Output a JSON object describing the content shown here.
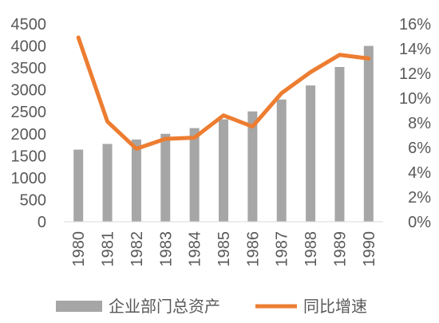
{
  "chart_data": {
    "type": "bar",
    "categories": [
      "1980",
      "1981",
      "1982",
      "1983",
      "1984",
      "1985",
      "1986",
      "1987",
      "1988",
      "1989",
      "1990"
    ],
    "series": [
      {
        "name": "企业部门总资产",
        "type": "bar",
        "axis": "left",
        "color": "#A6A6A6",
        "values": [
          1640,
          1770,
          1870,
          2000,
          2130,
          2330,
          2510,
          2780,
          3100,
          3520,
          4000
        ]
      },
      {
        "name": "同比增速",
        "type": "line",
        "axis": "right",
        "color": "#ED7D31",
        "values": [
          0.149,
          0.081,
          0.059,
          0.067,
          0.068,
          0.086,
          0.077,
          0.104,
          0.121,
          0.135,
          0.132
        ]
      }
    ],
    "y_left": {
      "min": 0,
      "max": 4500,
      "ticks": [
        "0",
        "500",
        "1000",
        "1500",
        "2000",
        "2500",
        "3000",
        "3500",
        "4000",
        "4500"
      ]
    },
    "y_right": {
      "min": 0,
      "max": 0.16,
      "ticks": [
        "0%",
        "2%",
        "4%",
        "6%",
        "8%",
        "10%",
        "12%",
        "14%",
        "16%"
      ]
    },
    "grid": false,
    "legend": {
      "position": "bottom",
      "items": [
        "企业部门总资产",
        "同比增速"
      ]
    }
  }
}
